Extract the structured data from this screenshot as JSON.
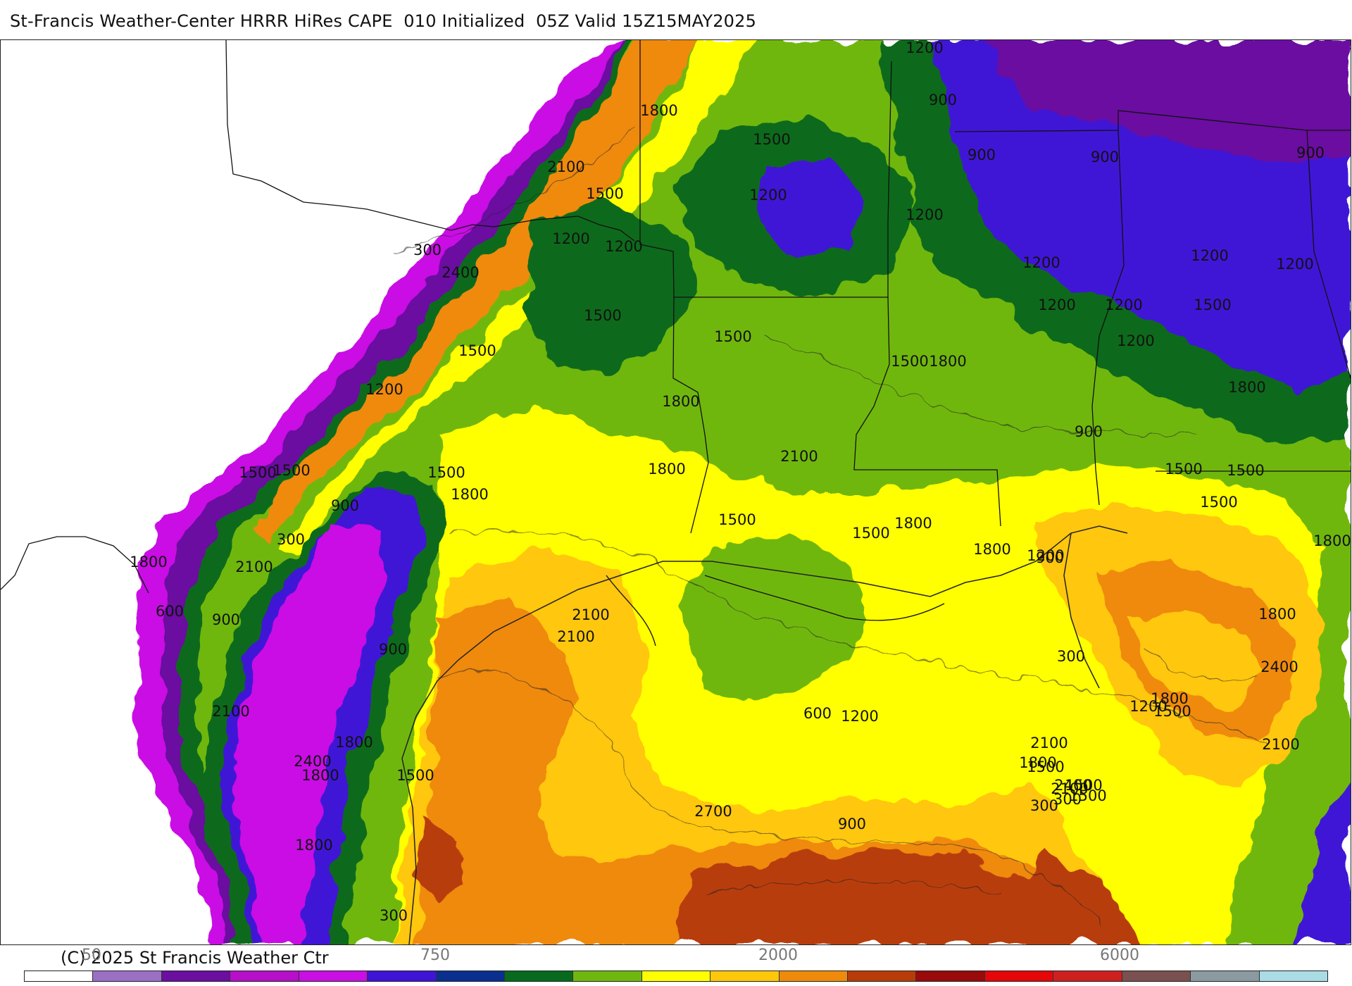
{
  "title": "St-Francis Weather-Center HRRR HiRes CAPE  010 Initialized  05Z Valid 15Z15MAY2025",
  "copyright": "(C) 2025 St Francis Weather Ctr",
  "colorbar": {
    "colors": [
      "#ffffff",
      "#9b6fc4",
      "#6a0fa0",
      "#b50fc9",
      "#c90fe4",
      "#3f14d6",
      "#0b2f8f",
      "#086a1e",
      "#6fb70f",
      "#ffff00",
      "#ffc70a",
      "#ef8a0a",
      "#b83c08",
      "#9a0a0a",
      "#e5060a",
      "#cf2020",
      "#7b5050",
      "#8a9aa0",
      "#aadce6"
    ],
    "tick_labels": [
      "50",
      "750",
      "2000",
      "6000"
    ]
  },
  "contour_labels": [
    "1200",
    "900",
    "1800",
    "1500",
    "900",
    "900",
    "2100",
    "1500",
    "1200",
    "1200",
    "1200",
    "300",
    "2400",
    "1200",
    "1200",
    "900",
    "1200",
    "1200",
    "1200",
    "1200",
    "1500",
    "1500",
    "1500",
    "1200",
    "1500",
    "1500",
    "1800",
    "1800",
    "1800",
    "1200",
    "900",
    "1500",
    "2100",
    "1500",
    "1500",
    "1800",
    "1500",
    "900",
    "1500",
    "1800",
    "1500",
    "1500",
    "1800",
    "300",
    "1800",
    "1500",
    "600",
    "1800",
    "1200",
    "1800",
    "2100",
    "900",
    "2100",
    "900",
    "1800",
    "2100",
    "900",
    "300",
    "2100",
    "2400",
    "1800",
    "1800",
    "1200",
    "2100",
    "600",
    "1500",
    "1800",
    "1200",
    "1800",
    "1500",
    "2100",
    "1500",
    "1500",
    "300",
    "2100",
    "2400",
    "1500",
    "2400",
    "300",
    "2700",
    "1800",
    "900",
    "300"
  ],
  "legend_colors_meaning": "CAPE shading"
}
